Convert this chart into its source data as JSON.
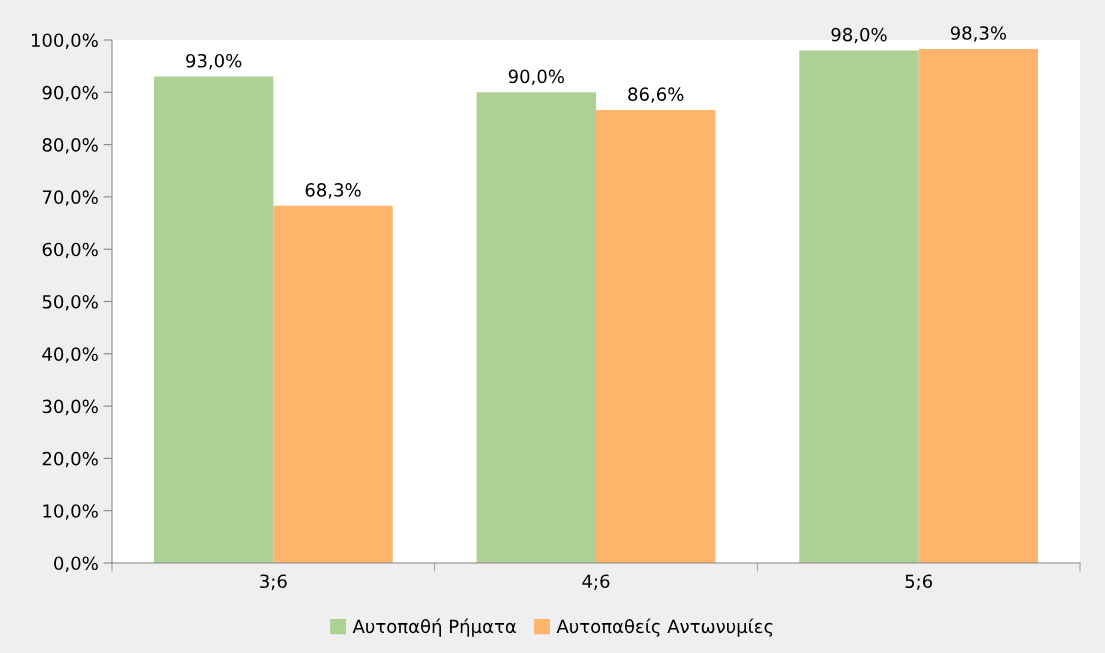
{
  "chart_data": {
    "type": "bar",
    "categories": [
      "3;6",
      "4;6",
      "5;6"
    ],
    "series": [
      {
        "name": "Αυτοπαθή Ρήματα",
        "color": "#aed094",
        "values": [
          93.0,
          90.0,
          98.0
        ],
        "value_labels": [
          "93,0%",
          "90,0%",
          "98,0%"
        ]
      },
      {
        "name": "Αυτοπαθείς Αντωνυμίες",
        "color": "#ffb46c",
        "values": [
          68.3,
          86.6,
          98.3
        ],
        "value_labels": [
          "68,3%",
          "86,6%",
          "98,3%"
        ]
      }
    ],
    "ylim": [
      0,
      100
    ],
    "yticks": [
      {
        "value": 0,
        "label": "0,0%"
      },
      {
        "value": 10,
        "label": "10,0%"
      },
      {
        "value": 20,
        "label": "20,0%"
      },
      {
        "value": 30,
        "label": "30,0%"
      },
      {
        "value": 40,
        "label": "40,0%"
      },
      {
        "value": 50,
        "label": "50,0%"
      },
      {
        "value": 60,
        "label": "60,0%"
      },
      {
        "value": 70,
        "label": "70,0%"
      },
      {
        "value": 80,
        "label": "80,0%"
      },
      {
        "value": 90,
        "label": "90,0%"
      },
      {
        "value": 100,
        "label": "100,0%"
      }
    ],
    "grid": false,
    "legend": "bottom"
  }
}
